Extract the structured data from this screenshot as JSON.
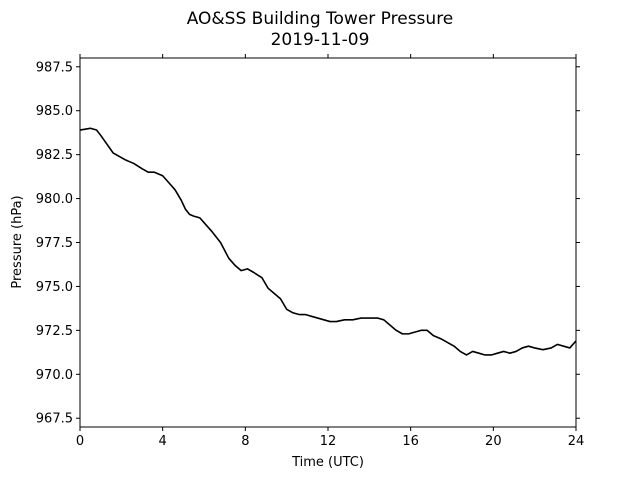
{
  "chart_data": {
    "type": "line",
    "title": "AO&SS Building Tower Pressure",
    "subtitle": "2019-11-09",
    "xlabel": "Time (UTC)",
    "ylabel": "Pressure (hPa)",
    "xlim": [
      0,
      24
    ],
    "ylim": [
      967.0,
      988.0
    ],
    "xticks": [
      0,
      4,
      8,
      12,
      16,
      20,
      24
    ],
    "yticks": [
      967.5,
      970.0,
      972.5,
      975.0,
      977.5,
      980.0,
      982.5,
      985.0,
      987.5
    ],
    "ytick_labels": [
      "967.5",
      "970.0",
      "972.5",
      "975.0",
      "977.5",
      "980.0",
      "982.5",
      "985.0",
      "987.5"
    ],
    "grid": false,
    "series": [
      {
        "color": "#000000",
        "x": [
          0,
          0.5,
          0.8,
          1.0,
          1.3,
          1.6,
          1.9,
          2.2,
          2.6,
          3.0,
          3.3,
          3.6,
          4.0,
          4.3,
          4.6,
          4.9,
          5.1,
          5.3,
          5.5,
          5.8,
          6.1,
          6.4,
          6.8,
          7.2,
          7.5,
          7.8,
          8.1,
          8.4,
          8.8,
          9.1,
          9.4,
          9.7,
          10.0,
          10.3,
          10.6,
          10.9,
          11.2,
          11.5,
          11.8,
          12.1,
          12.4,
          12.8,
          13.2,
          13.6,
          14.0,
          14.4,
          14.7,
          15.0,
          15.3,
          15.6,
          15.9,
          16.2,
          16.5,
          16.8,
          17.1,
          17.5,
          17.8,
          18.1,
          18.4,
          18.7,
          19.0,
          19.3,
          19.6,
          19.9,
          20.2,
          20.5,
          20.8,
          21.1,
          21.4,
          21.7,
          22.0,
          22.4,
          22.8,
          23.1,
          23.4,
          23.7,
          24.0
        ],
        "y": [
          983.9,
          984.0,
          983.9,
          983.6,
          983.1,
          982.6,
          982.4,
          982.2,
          982.0,
          981.7,
          981.5,
          981.5,
          981.3,
          980.9,
          980.5,
          979.9,
          979.4,
          979.1,
          979.0,
          978.9,
          978.5,
          978.1,
          977.5,
          976.6,
          976.2,
          975.9,
          976.0,
          975.8,
          975.5,
          974.9,
          974.6,
          974.3,
          973.7,
          973.5,
          973.4,
          973.4,
          973.3,
          973.2,
          973.1,
          973.0,
          973.0,
          973.1,
          973.1,
          973.2,
          973.2,
          973.2,
          973.1,
          972.8,
          972.5,
          972.3,
          972.3,
          972.4,
          972.5,
          972.5,
          972.2,
          972.0,
          971.8,
          971.6,
          971.3,
          971.1,
          971.3,
          971.2,
          971.1,
          971.1,
          971.2,
          971.3,
          971.2,
          971.3,
          971.5,
          971.6,
          971.5,
          971.4,
          971.5,
          971.7,
          971.6,
          971.5,
          971.9
        ]
      }
    ]
  }
}
